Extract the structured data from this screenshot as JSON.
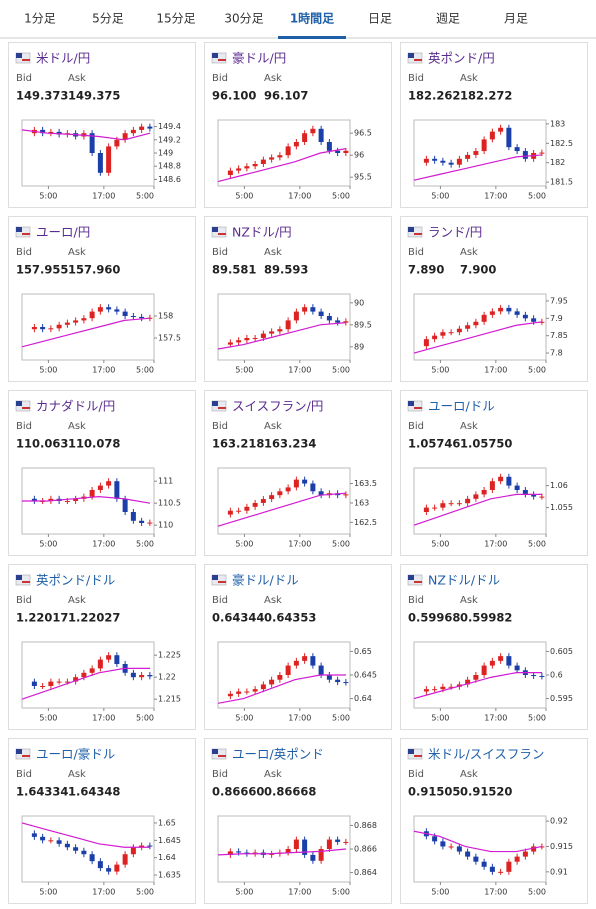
{
  "tabs": [
    {
      "label": "1分足"
    },
    {
      "label": "5分足"
    },
    {
      "label": "15分足"
    },
    {
      "label": "30分足"
    },
    {
      "label": "1時間足",
      "active": true
    },
    {
      "label": "日足"
    },
    {
      "label": "週足"
    },
    {
      "label": "月足"
    }
  ],
  "bid_label": "Bid",
  "ask_label": "Ask",
  "time_labels": [
    "5:00",
    "17:00",
    "5:00"
  ],
  "charts": [
    {
      "type": "candlestick",
      "name": "米ドル/円",
      "color": "#5b2c8f",
      "bid": "149.373",
      "ask": "149.375",
      "ylim": [
        148.5,
        149.5
      ],
      "yticks": [
        149.4,
        149.2,
        149,
        148.8,
        148.6
      ],
      "values": [
        149.3,
        149.35,
        149.3,
        149.32,
        149.28,
        149.3,
        149.25,
        149.3,
        149.0,
        148.7,
        149.1,
        149.2,
        149.3,
        149.35,
        149.4,
        149.37
      ],
      "ma": [
        149.35,
        149.3,
        149.28,
        149.25,
        149.2,
        149.3
      ]
    },
    {
      "type": "candlestick",
      "name": "豪ドル/円",
      "color": "#5b2c8f",
      "bid": "96.100",
      "ask": "96.107",
      "ylim": [
        95.3,
        96.8
      ],
      "yticks": [
        96.5,
        96,
        95.5
      ],
      "values": [
        95.55,
        95.65,
        95.7,
        95.75,
        95.8,
        95.9,
        95.95,
        96.0,
        96.2,
        96.3,
        96.5,
        96.6,
        96.3,
        96.1,
        96.05,
        96.1
      ],
      "ma": [
        95.4,
        95.55,
        95.7,
        95.85,
        96.05,
        96.15
      ]
    },
    {
      "type": "candlestick",
      "name": "英ポンド/円",
      "color": "#5b2c8f",
      "bid": "182.262",
      "ask": "182.272",
      "ylim": [
        181.4,
        183.1
      ],
      "yticks": [
        183,
        182.5,
        182,
        181.5
      ],
      "values": [
        182.0,
        182.1,
        182.05,
        182.0,
        181.95,
        182.1,
        182.2,
        182.3,
        182.6,
        182.8,
        182.9,
        182.4,
        182.3,
        182.1,
        182.25,
        182.26
      ],
      "ma": [
        181.55,
        181.7,
        181.85,
        182.0,
        182.15,
        182.2
      ]
    },
    {
      "type": "candlestick",
      "name": "ユーロ/円",
      "color": "#5b2c8f",
      "bid": "157.955",
      "ask": "157.960",
      "ylim": [
        157.0,
        158.5
      ],
      "yticks": [
        158,
        157.5
      ],
      "values": [
        157.7,
        157.75,
        157.7,
        157.72,
        157.8,
        157.85,
        157.9,
        157.95,
        158.1,
        158.2,
        158.15,
        158.1,
        158.0,
        157.98,
        157.95,
        157.96
      ],
      "ma": [
        157.3,
        157.45,
        157.6,
        157.75,
        157.9,
        157.95
      ]
    },
    {
      "type": "candlestick",
      "name": "NZドル/円",
      "color": "#5b2c8f",
      "bid": "89.581",
      "ask": "89.593",
      "ylim": [
        88.7,
        90.2
      ],
      "yticks": [
        90,
        89.5,
        89
      ],
      "values": [
        89.05,
        89.1,
        89.15,
        89.2,
        89.2,
        89.3,
        89.35,
        89.4,
        89.6,
        89.8,
        89.9,
        89.8,
        89.7,
        89.6,
        89.55,
        89.58
      ],
      "ma": [
        88.95,
        89.05,
        89.2,
        89.35,
        89.5,
        89.55
      ]
    },
    {
      "type": "candlestick",
      "name": "ランド/円",
      "color": "#5b2c8f",
      "bid": "7.890",
      "ask": "7.900",
      "ylim": [
        7.78,
        7.97
      ],
      "yticks": [
        7.95,
        7.9,
        7.85,
        7.8
      ],
      "values": [
        7.82,
        7.84,
        7.85,
        7.86,
        7.86,
        7.87,
        7.88,
        7.89,
        7.91,
        7.92,
        7.93,
        7.92,
        7.91,
        7.9,
        7.89,
        7.89
      ],
      "ma": [
        7.8,
        7.82,
        7.84,
        7.86,
        7.88,
        7.89
      ]
    },
    {
      "type": "candlestick",
      "name": "カナダドル/円",
      "color": "#5b2c8f",
      "bid": "110.063",
      "ask": "110.078",
      "ylim": [
        109.8,
        111.3
      ],
      "yticks": [
        111,
        110.5,
        110
      ],
      "values": [
        110.6,
        110.55,
        110.55,
        110.6,
        110.55,
        110.55,
        110.6,
        110.65,
        110.8,
        110.9,
        111.0,
        110.6,
        110.3,
        110.1,
        110.05,
        110.06
      ],
      "ma": [
        110.55,
        110.55,
        110.6,
        110.65,
        110.6,
        110.5
      ]
    },
    {
      "type": "candlestick",
      "name": "スイスフラン/円",
      "color": "#5b2c8f",
      "bid": "163.218",
      "ask": "163.234",
      "ylim": [
        162.2,
        163.9
      ],
      "yticks": [
        163.5,
        163,
        162.5
      ],
      "values": [
        162.7,
        162.8,
        162.8,
        162.9,
        163.0,
        163.1,
        163.2,
        163.3,
        163.4,
        163.6,
        163.5,
        163.3,
        163.2,
        163.25,
        163.2,
        163.22
      ],
      "ma": [
        162.4,
        162.6,
        162.8,
        163.0,
        163.2,
        163.25
      ]
    },
    {
      "type": "candlestick",
      "name": "ユーロ/ドル",
      "color": "#1f5fa8",
      "bid": "1.05746",
      "ask": "1.05750",
      "ylim": [
        1.049,
        1.064
      ],
      "yticks": [
        1.06,
        1.055
      ],
      "values": [
        1.054,
        1.055,
        1.055,
        1.056,
        1.056,
        1.056,
        1.057,
        1.058,
        1.059,
        1.061,
        1.062,
        1.06,
        1.059,
        1.058,
        1.0575,
        1.0575
      ],
      "ma": [
        1.051,
        1.053,
        1.055,
        1.057,
        1.058,
        1.058
      ]
    },
    {
      "type": "candlestick",
      "name": "英ポンド/ドル",
      "color": "#1f5fa8",
      "bid": "1.22017",
      "ask": "1.22027",
      "ylim": [
        1.213,
        1.228
      ],
      "yticks": [
        1.225,
        1.22,
        1.215
      ],
      "values": [
        1.219,
        1.218,
        1.218,
        1.219,
        1.219,
        1.219,
        1.22,
        1.221,
        1.222,
        1.224,
        1.225,
        1.223,
        1.221,
        1.22,
        1.2205,
        1.2202
      ],
      "ma": [
        1.215,
        1.217,
        1.219,
        1.221,
        1.222,
        1.222
      ]
    },
    {
      "type": "candlestick",
      "name": "豪ドル/ドル",
      "color": "#1f5fa8",
      "bid": "0.64344",
      "ask": "0.64353",
      "ylim": [
        0.638,
        0.652
      ],
      "yticks": [
        0.65,
        0.645,
        0.64
      ],
      "values": [
        0.6405,
        0.641,
        0.6415,
        0.6415,
        0.642,
        0.643,
        0.644,
        0.645,
        0.647,
        0.648,
        0.649,
        0.647,
        0.645,
        0.644,
        0.6435,
        0.6434
      ],
      "ma": [
        0.639,
        0.64,
        0.642,
        0.644,
        0.645,
        0.645
      ]
    },
    {
      "type": "candlestick",
      "name": "NZドル/ドル",
      "color": "#1f5fa8",
      "bid": "0.59968",
      "ask": "0.59982",
      "ylim": [
        0.593,
        0.607
      ],
      "yticks": [
        0.605,
        0.6,
        0.595
      ],
      "values": [
        0.5965,
        0.597,
        0.597,
        0.5975,
        0.5975,
        0.598,
        0.599,
        0.6,
        0.602,
        0.603,
        0.604,
        0.602,
        0.601,
        0.6,
        0.5998,
        0.5997
      ],
      "ma": [
        0.595,
        0.5965,
        0.598,
        0.5995,
        0.6005,
        0.6005
      ]
    },
    {
      "type": "candlestick",
      "name": "ユーロ/豪ドル",
      "color": "#1f5fa8",
      "bid": "1.64334",
      "ask": "1.64348",
      "ylim": [
        1.633,
        1.652
      ],
      "yticks": [
        1.65,
        1.645,
        1.64,
        1.635
      ],
      "values": [
        1.647,
        1.646,
        1.645,
        1.645,
        1.644,
        1.643,
        1.642,
        1.641,
        1.639,
        1.637,
        1.636,
        1.638,
        1.641,
        1.643,
        1.6435,
        1.6433
      ],
      "ma": [
        1.65,
        1.648,
        1.646,
        1.644,
        1.643,
        1.643
      ]
    },
    {
      "type": "candlestick",
      "name": "ユーロ/英ポンド",
      "color": "#1f5fa8",
      "bid": "0.86660",
      "ask": "0.86668",
      "ylim": [
        0.8632,
        0.8688
      ],
      "yticks": [
        0.868,
        0.866,
        0.864
      ],
      "values": [
        0.8655,
        0.8658,
        0.8657,
        0.8656,
        0.8657,
        0.8655,
        0.8656,
        0.8657,
        0.866,
        0.8668,
        0.8655,
        0.865,
        0.866,
        0.8668,
        0.8666,
        0.8666
      ],
      "ma": [
        0.8655,
        0.8656,
        0.8656,
        0.8657,
        0.8658,
        0.866
      ]
    },
    {
      "type": "candlestick",
      "name": "米ドル/スイスフラン",
      "color": "#1f5fa8",
      "bid": "0.91505",
      "ask": "0.91520",
      "ylim": [
        0.908,
        0.921
      ],
      "yticks": [
        0.92,
        0.915,
        0.91
      ],
      "values": [
        0.918,
        0.917,
        0.916,
        0.915,
        0.915,
        0.914,
        0.913,
        0.912,
        0.911,
        0.91,
        0.91,
        0.912,
        0.913,
        0.914,
        0.915,
        0.915
      ],
      "ma": [
        0.918,
        0.917,
        0.915,
        0.914,
        0.914,
        0.915
      ]
    }
  ]
}
